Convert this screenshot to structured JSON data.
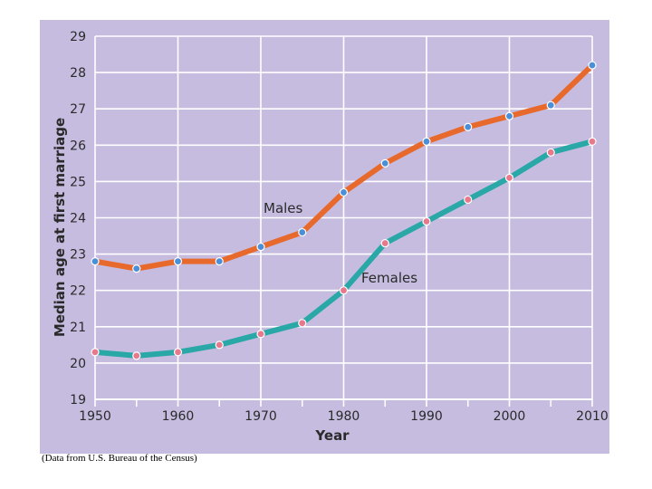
{
  "chart_data": {
    "type": "line",
    "title": "",
    "xlabel": "Year",
    "ylabel": "Median age at first marriage",
    "xlim": [
      1950,
      2010
    ],
    "ylim": [
      19,
      29
    ],
    "xticks": [
      1950,
      1960,
      1970,
      1980,
      1990,
      2000,
      2010
    ],
    "yticks": [
      19,
      20,
      21,
      22,
      23,
      24,
      25,
      26,
      27,
      28,
      29
    ],
    "grid": true,
    "x": [
      1950,
      1955,
      1960,
      1965,
      1970,
      1975,
      1980,
      1985,
      1990,
      1995,
      2000,
      2005,
      2010
    ],
    "series": [
      {
        "name": "Males",
        "color": "#e8692c",
        "marker_color": "#4a90d9",
        "values": [
          22.8,
          22.6,
          22.8,
          22.8,
          23.2,
          23.6,
          24.7,
          25.5,
          26.1,
          26.5,
          26.8,
          27.1,
          28.2
        ]
      },
      {
        "name": "Females",
        "color": "#2aa7a7",
        "marker_color": "#e8788c",
        "values": [
          20.3,
          20.2,
          20.3,
          20.5,
          20.8,
          21.1,
          22.0,
          23.3,
          23.9,
          24.5,
          25.1,
          25.8,
          26.1
        ]
      }
    ]
  },
  "source_note": "(Data from U.S. Bureau of the Census)"
}
